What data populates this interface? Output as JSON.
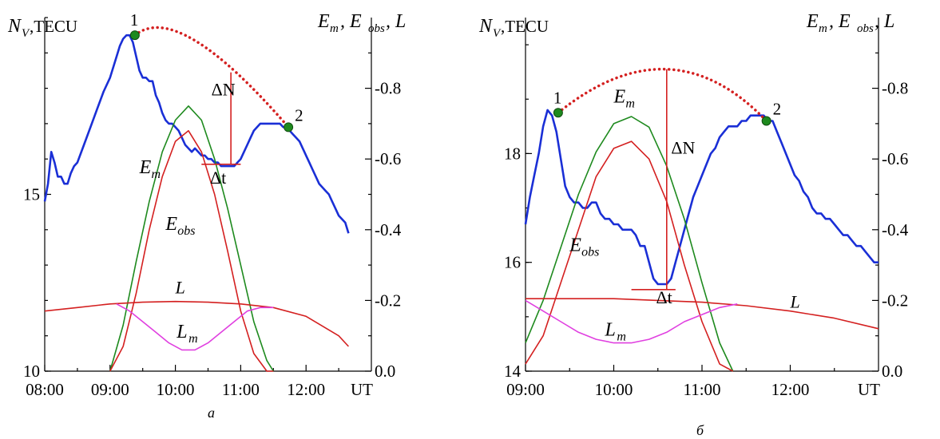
{
  "chart_data": [
    {
      "type": "line",
      "panel_label": "а",
      "left_axis": {
        "label_var": "N",
        "label_sub": "V",
        "label_unit": ",TECU",
        "ylim": [
          10,
          20
        ],
        "ticks": [
          "10",
          "15"
        ]
      },
      "right_axis": {
        "label": "E_m, E_obs, L",
        "label_parts": [
          "E",
          "m",
          ", E",
          "obs",
          ", L"
        ],
        "ylim": [
          0,
          1.0
        ],
        "ticks": [
          "0.0",
          "0.2",
          "0.4",
          "0.6",
          "0.8"
        ]
      },
      "x_axis": {
        "range_hours": [
          8.0,
          13.0
        ],
        "ticks": [
          "08:00",
          "09:00",
          "10:00",
          "11:00",
          "12:00"
        ],
        "unit": "UT"
      },
      "grid": false,
      "series": [
        {
          "name": "N_V",
          "axis": "left",
          "color": "#1a2fd6",
          "x": [
            8.0,
            8.05,
            8.1,
            8.15,
            8.2,
            8.25,
            8.3,
            8.35,
            8.4,
            8.45,
            8.5,
            8.6,
            8.7,
            8.8,
            8.9,
            9.0,
            9.05,
            9.1,
            9.15,
            9.2,
            9.25,
            9.3,
            9.35,
            9.4,
            9.45,
            9.5,
            9.55,
            9.6,
            9.65,
            9.7,
            9.75,
            9.8,
            9.85,
            9.9,
            9.95,
            10.0,
            10.05,
            10.1,
            10.15,
            10.2,
            10.25,
            10.3,
            10.35,
            10.4,
            10.45,
            10.5,
            10.55,
            10.6,
            10.65,
            10.7,
            10.75,
            10.8,
            10.85,
            10.9,
            10.95,
            11.0,
            11.05,
            11.1,
            11.15,
            11.2,
            11.25,
            11.3,
            11.35,
            11.4,
            11.45,
            11.5,
            11.55,
            11.6,
            11.65,
            11.7,
            11.75,
            11.8,
            11.85,
            11.9,
            11.95,
            12.0,
            12.05,
            12.1,
            12.15,
            12.2,
            12.25,
            12.3,
            12.35,
            12.4,
            12.45,
            12.5,
            12.55,
            12.6,
            12.65
          ],
          "y": [
            14.8,
            15.3,
            16.2,
            15.9,
            15.5,
            15.5,
            15.3,
            15.3,
            15.6,
            15.8,
            15.9,
            16.4,
            16.9,
            17.4,
            17.9,
            18.3,
            18.6,
            18.9,
            19.2,
            19.4,
            19.5,
            19.5,
            19.3,
            18.9,
            18.5,
            18.3,
            18.3,
            18.2,
            18.2,
            17.8,
            17.6,
            17.3,
            17.1,
            17.0,
            17.0,
            16.9,
            16.8,
            16.6,
            16.4,
            16.3,
            16.2,
            16.3,
            16.2,
            16.1,
            16.1,
            16.0,
            16.0,
            15.9,
            15.9,
            15.8,
            15.8,
            15.8,
            15.8,
            15.8,
            15.9,
            16.0,
            16.2,
            16.4,
            16.6,
            16.8,
            16.9,
            17.0,
            17.0,
            17.0,
            17.0,
            17.0,
            17.0,
            17.0,
            16.9,
            16.9,
            16.8,
            16.7,
            16.6,
            16.5,
            16.3,
            16.1,
            15.9,
            15.7,
            15.5,
            15.3,
            15.2,
            15.1,
            15.0,
            14.8,
            14.6,
            14.4,
            14.3,
            14.2,
            13.9
          ]
        },
        {
          "name": "E_m",
          "axis": "right",
          "color": "#1e8a1e",
          "x": [
            9.0,
            9.2,
            9.4,
            9.6,
            9.8,
            10.0,
            10.2,
            10.4,
            10.6,
            10.8,
            11.0,
            11.2,
            11.4,
            11.5
          ],
          "y": [
            0.0,
            0.13,
            0.31,
            0.48,
            0.62,
            0.71,
            0.75,
            0.71,
            0.6,
            0.46,
            0.3,
            0.14,
            0.03,
            0.0
          ]
        },
        {
          "name": "E_obs",
          "axis": "right",
          "color": "#d42020",
          "x": [
            9.0,
            9.2,
            9.4,
            9.6,
            9.8,
            10.0,
            10.2,
            10.4,
            10.6,
            10.8,
            11.0,
            11.2,
            11.4,
            11.5
          ],
          "y": [
            0.0,
            0.07,
            0.22,
            0.4,
            0.55,
            0.65,
            0.68,
            0.62,
            0.5,
            0.34,
            0.17,
            0.05,
            0.0,
            0.0
          ]
        },
        {
          "name": "L",
          "axis": "right",
          "color": "#d42020",
          "x": [
            8.0,
            8.5,
            9.0,
            9.5,
            10.0,
            10.5,
            11.0,
            11.5,
            12.0,
            12.5,
            12.65
          ],
          "y": [
            0.17,
            0.18,
            0.19,
            0.195,
            0.197,
            0.195,
            0.19,
            0.18,
            0.155,
            0.1,
            0.07
          ]
        },
        {
          "name": "L_m",
          "axis": "right",
          "color": "#e040e0",
          "x": [
            9.1,
            9.3,
            9.5,
            9.7,
            9.9,
            10.1,
            10.3,
            10.5,
            10.7,
            10.9,
            11.1,
            11.3,
            11.5
          ],
          "y": [
            0.19,
            0.17,
            0.14,
            0.11,
            0.08,
            0.06,
            0.06,
            0.08,
            0.11,
            0.14,
            0.17,
            0.18,
            0.18
          ]
        }
      ],
      "points": [
        {
          "label": "1",
          "x": 9.38,
          "y": 19.5
        },
        {
          "label": "2",
          "x": 11.73,
          "y": 16.9
        }
      ],
      "dotted_arc": {
        "from": [
          9.38,
          19.5
        ],
        "to": [
          11.73,
          16.9
        ],
        "peak": [
          10.3,
          19.35
        ]
      },
      "annotations": {
        "delta_n": "ΔN",
        "delta_t": "Δt",
        "delta_n_line": {
          "x": 10.85,
          "y": [
            15.85,
            18.45
          ]
        },
        "delta_t_line": {
          "x": [
            10.4,
            11.0
          ],
          "y": 15.85
        }
      },
      "curve_labels": {
        "e_m": [
          "E",
          "m"
        ],
        "e_obs": [
          "E",
          "obs"
        ],
        "l": "L",
        "l_m": [
          "L",
          "m"
        ]
      }
    },
    {
      "type": "line",
      "panel_label": "б",
      "left_axis": {
        "label_var": "N",
        "label_sub": "V",
        "label_unit": ",TECU",
        "ylim": [
          14,
          20.5
        ],
        "ticks": [
          "14",
          "16",
          "18"
        ]
      },
      "right_axis": {
        "label": "E_m, E_obs, L",
        "label_parts": [
          "E",
          "m",
          ", E",
          "obs",
          ", L"
        ],
        "ylim": [
          0,
          1.0
        ],
        "ticks": [
          "0.0",
          "0.2",
          "0.4",
          "0.6",
          "0.8"
        ]
      },
      "x_axis": {
        "range_hours": [
          9.0,
          13.0
        ],
        "ticks": [
          "09:00",
          "10:00",
          "11:00",
          "12:00"
        ],
        "unit": "UT"
      },
      "grid": false,
      "series": [
        {
          "name": "N_V",
          "axis": "left",
          "color": "#1a2fd6",
          "x": [
            9.0,
            9.05,
            9.1,
            9.15,
            9.2,
            9.25,
            9.3,
            9.35,
            9.4,
            9.45,
            9.5,
            9.55,
            9.6,
            9.65,
            9.7,
            9.75,
            9.8,
            9.85,
            9.9,
            9.95,
            10.0,
            10.05,
            10.1,
            10.15,
            10.2,
            10.25,
            10.3,
            10.35,
            10.4,
            10.45,
            10.5,
            10.55,
            10.6,
            10.65,
            10.7,
            10.75,
            10.8,
            10.85,
            10.9,
            10.95,
            11.0,
            11.05,
            11.1,
            11.15,
            11.2,
            11.25,
            11.3,
            11.35,
            11.4,
            11.45,
            11.5,
            11.55,
            11.6,
            11.65,
            11.7,
            11.75,
            11.8,
            11.85,
            11.9,
            11.95,
            12.0,
            12.05,
            12.1,
            12.15,
            12.2,
            12.25,
            12.3,
            12.35,
            12.4,
            12.45,
            12.5,
            12.55,
            12.6,
            12.65,
            12.7,
            12.75,
            12.8,
            12.85,
            12.9,
            12.95,
            13.0
          ],
          "y": [
            16.7,
            17.2,
            17.6,
            18.0,
            18.5,
            18.8,
            18.7,
            18.4,
            17.9,
            17.4,
            17.2,
            17.1,
            17.1,
            17.0,
            17.0,
            17.1,
            17.1,
            16.9,
            16.8,
            16.8,
            16.7,
            16.7,
            16.6,
            16.6,
            16.6,
            16.5,
            16.3,
            16.3,
            16.0,
            15.7,
            15.6,
            15.6,
            15.6,
            15.7,
            16.0,
            16.3,
            16.6,
            16.9,
            17.2,
            17.4,
            17.6,
            17.8,
            18.0,
            18.1,
            18.3,
            18.4,
            18.5,
            18.5,
            18.5,
            18.6,
            18.6,
            18.7,
            18.7,
            18.7,
            18.7,
            18.6,
            18.6,
            18.4,
            18.2,
            18.0,
            17.8,
            17.6,
            17.5,
            17.3,
            17.2,
            17.0,
            16.9,
            16.9,
            16.8,
            16.8,
            16.7,
            16.6,
            16.5,
            16.5,
            16.4,
            16.3,
            16.3,
            16.2,
            16.1,
            16.0,
            16.0
          ]
        },
        {
          "name": "E_m",
          "axis": "right",
          "color": "#1e8a1e",
          "x": [
            9.0,
            9.2,
            9.4,
            9.6,
            9.8,
            10.0,
            10.2,
            10.4,
            10.6,
            10.8,
            11.0,
            11.2,
            11.35
          ],
          "y": [
            0.08,
            0.2,
            0.35,
            0.5,
            0.62,
            0.7,
            0.72,
            0.69,
            0.58,
            0.43,
            0.25,
            0.08,
            0.0
          ]
        },
        {
          "name": "E_obs",
          "axis": "right",
          "color": "#d42020",
          "x": [
            9.0,
            9.2,
            9.4,
            9.6,
            9.8,
            10.0,
            10.2,
            10.4,
            10.6,
            10.8,
            11.0,
            11.2,
            11.35
          ],
          "y": [
            0.02,
            0.1,
            0.25,
            0.4,
            0.55,
            0.63,
            0.65,
            0.6,
            0.48,
            0.3,
            0.14,
            0.02,
            0.0
          ]
        },
        {
          "name": "L",
          "axis": "right",
          "color": "#d42020",
          "x": [
            9.0,
            9.5,
            10.0,
            10.5,
            11.0,
            11.5,
            12.0,
            12.5,
            13.0
          ],
          "y": [
            0.205,
            0.205,
            0.205,
            0.2,
            0.195,
            0.185,
            0.17,
            0.15,
            0.12
          ]
        },
        {
          "name": "L_m",
          "axis": "right",
          "color": "#e040e0",
          "x": [
            9.0,
            9.2,
            9.4,
            9.6,
            9.8,
            10.0,
            10.2,
            10.4,
            10.6,
            10.8,
            11.0,
            11.2,
            11.4
          ],
          "y": [
            0.2,
            0.17,
            0.14,
            0.11,
            0.09,
            0.08,
            0.08,
            0.09,
            0.11,
            0.14,
            0.16,
            0.18,
            0.19
          ]
        }
      ],
      "points": [
        {
          "label": "1",
          "x": 9.37,
          "y": 18.75
        },
        {
          "label": "2",
          "x": 11.73,
          "y": 18.6
        }
      ],
      "dotted_arc": {
        "from": [
          9.37,
          18.75
        ],
        "to": [
          11.73,
          18.6
        ],
        "peak": [
          10.6,
          19.55
        ]
      },
      "annotations": {
        "delta_n": "ΔN",
        "delta_t": "Δt",
        "delta_n_line": {
          "x": 10.6,
          "y": [
            15.5,
            19.55
          ]
        },
        "delta_t_line": {
          "x": [
            10.2,
            10.7
          ],
          "y": 15.5
        }
      },
      "curve_labels": {
        "e_m": [
          "E",
          "m"
        ],
        "e_obs": [
          "E",
          "obs"
        ],
        "l": "L",
        "l_m": [
          "L",
          "m"
        ]
      }
    }
  ]
}
